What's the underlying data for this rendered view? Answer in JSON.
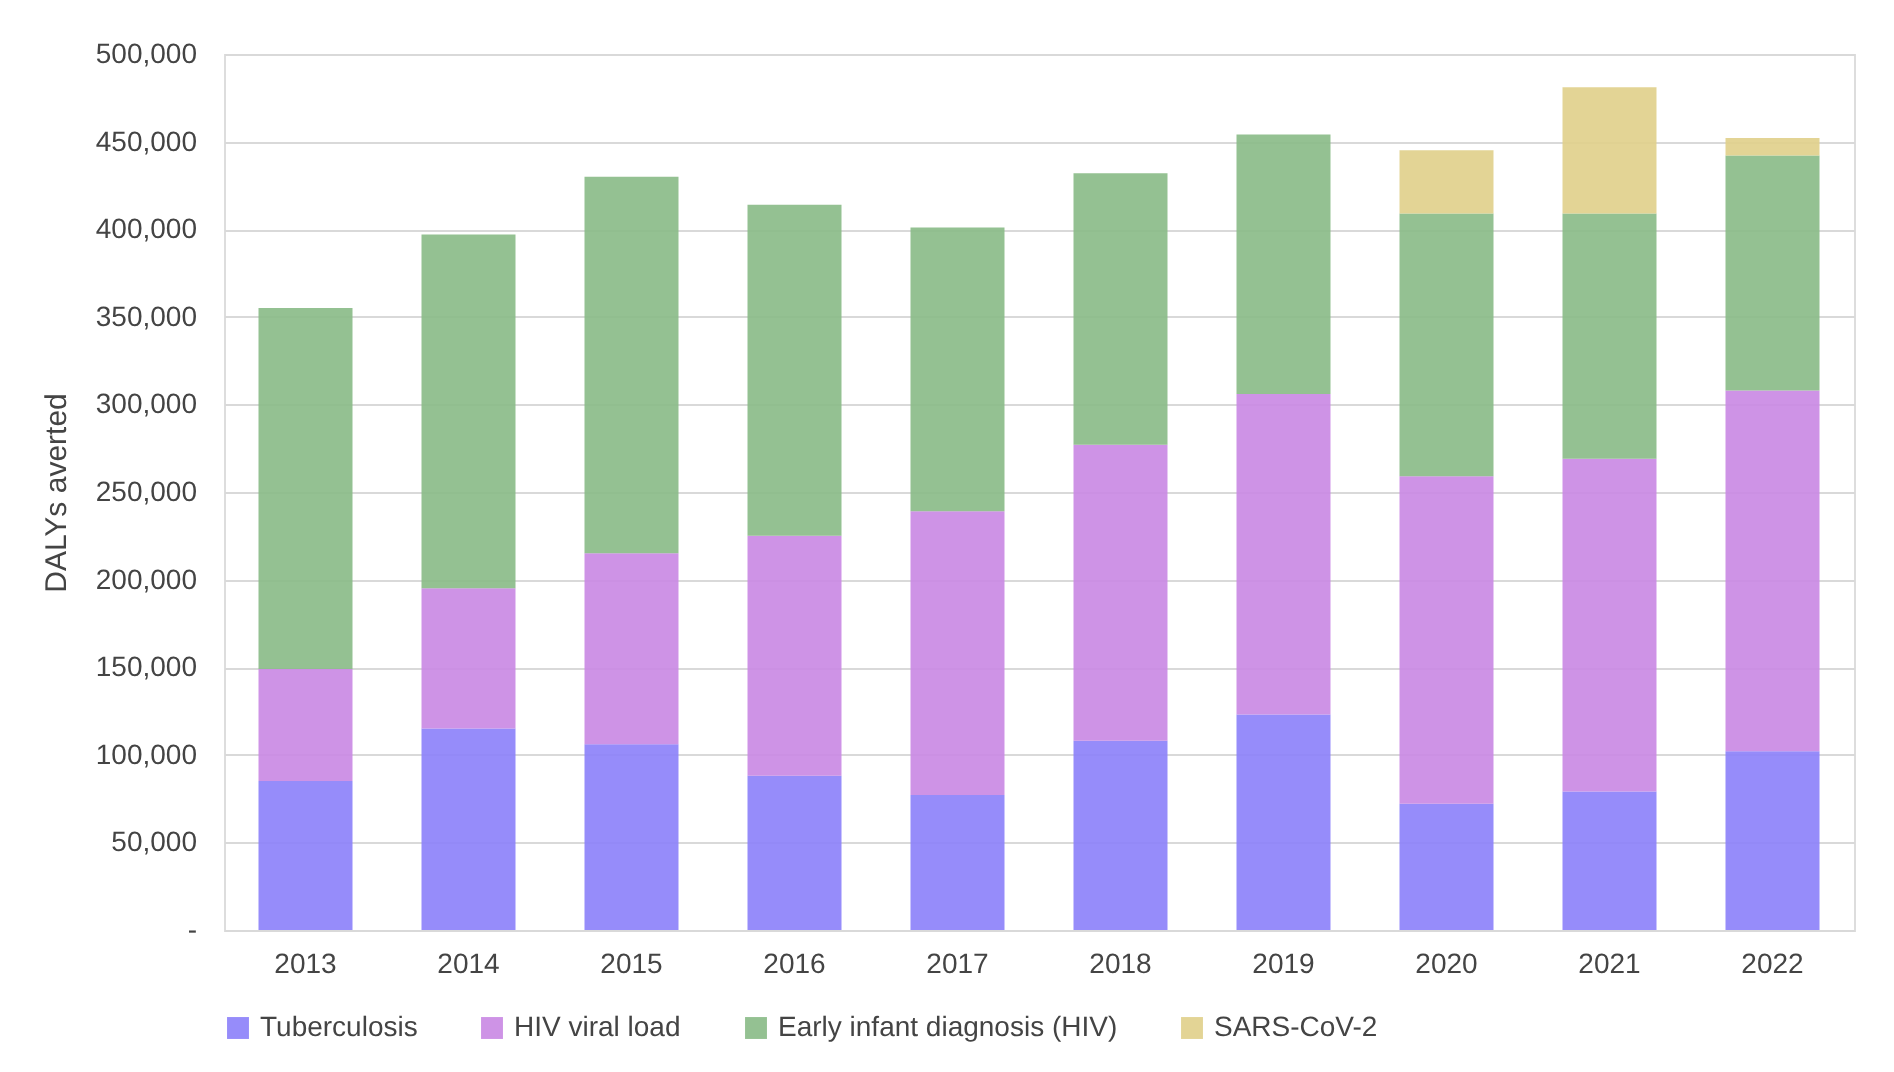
{
  "chart_data": {
    "type": "bar",
    "stacked": true,
    "ylabel": "DALYs averted",
    "categories": [
      "2013",
      "2014",
      "2015",
      "2016",
      "2017",
      "2018",
      "2019",
      "2020",
      "2021",
      "2022"
    ],
    "series": [
      {
        "name": "Tuberculosis",
        "color": "#8b7ff9",
        "values": [
          85000,
          115000,
          106000,
          88000,
          77000,
          108000,
          123000,
          72000,
          79000,
          102000
        ]
      },
      {
        "name": "HIV viral load",
        "color": "#c987e3",
        "values": [
          64000,
          80000,
          109000,
          137000,
          162000,
          169000,
          183000,
          187000,
          190000,
          206000
        ]
      },
      {
        "name": "Early infant diagnosis (HIV)",
        "color": "#88ba86",
        "values": [
          206000,
          202000,
          215000,
          189000,
          162000,
          155000,
          148000,
          150000,
          140000,
          134000
        ]
      },
      {
        "name": "SARS-CoV-2",
        "color": "#e0cf89",
        "values": [
          null,
          null,
          null,
          null,
          null,
          null,
          null,
          36000,
          72000,
          10000
        ]
      }
    ],
    "ylim": [
      0,
      500000
    ],
    "yticks": [
      {
        "value": 0,
        "label": "-"
      },
      {
        "value": 50000,
        "label": "50,000"
      },
      {
        "value": 100000,
        "label": "100,000"
      },
      {
        "value": 150000,
        "label": "150,000"
      },
      {
        "value": 200000,
        "label": "200,000"
      },
      {
        "value": 250000,
        "label": "250,000"
      },
      {
        "value": 300000,
        "label": "300,000"
      },
      {
        "value": 350000,
        "label": "350,000"
      },
      {
        "value": 400000,
        "label": "400,000"
      },
      {
        "value": 450000,
        "label": "450,000"
      },
      {
        "value": 500000,
        "label": "500,000"
      }
    ],
    "grid": "y",
    "legend": "bottom"
  }
}
